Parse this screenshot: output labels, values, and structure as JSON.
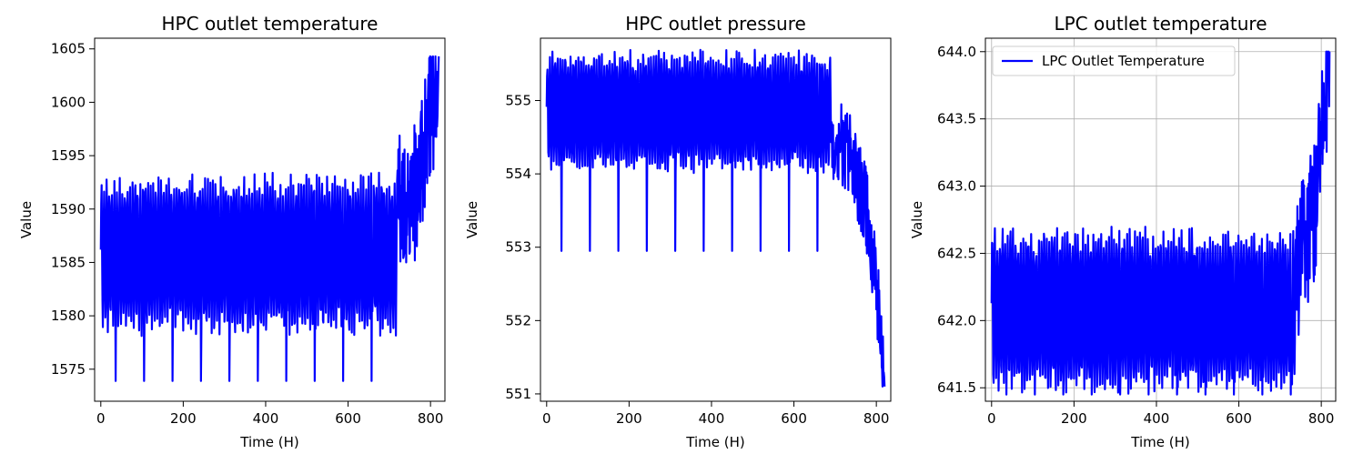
{
  "chart_data": [
    {
      "type": "line",
      "title": "HPC outlet temperature",
      "xlabel": "Time (H)",
      "ylabel": "Value",
      "xlim": [
        -15,
        835
      ],
      "ylim": [
        1572,
        1606
      ],
      "xticks": [
        0,
        200,
        400,
        600,
        800
      ],
      "xtick_labels": [
        "0",
        "200",
        "400",
        "600",
        "800"
      ],
      "yticks": [
        1575,
        1580,
        1585,
        1590,
        1595,
        1600,
        1605
      ],
      "ytick_labels": [
        "1575",
        "1580",
        "1585",
        "1590",
        "1595",
        "1600",
        "1605"
      ],
      "grid": false,
      "legend": null,
      "series": [
        {
          "color": "#0000ff",
          "x_range": [
            0,
            820
          ],
          "cycle_length": 69,
          "baseline_low": 1578.0,
          "baseline_high": 1593.4,
          "dip": 1573.9,
          "end_rise": [
            {
              "x": 720,
              "value": 1590
            },
            {
              "x": 760,
              "value": 1591
            },
            {
              "x": 790,
              "value": 1596
            },
            {
              "x": 805,
              "value": 1600
            },
            {
              "x": 820,
              "value": 1604.3
            }
          ]
        }
      ]
    },
    {
      "type": "line",
      "title": "HPC outlet pressure",
      "xlabel": "Time (H)",
      "ylabel": "Value",
      "xlim": [
        -15,
        835
      ],
      "ylim": [
        550.9,
        555.85
      ],
      "xticks": [
        0,
        200,
        400,
        600,
        800
      ],
      "xtick_labels": [
        "0",
        "200",
        "400",
        "600",
        "800"
      ],
      "yticks": [
        551,
        552,
        553,
        554,
        555
      ],
      "ytick_labels": [
        "551",
        "552",
        "553",
        "554",
        "555"
      ],
      "grid": false,
      "legend": null,
      "series": [
        {
          "color": "#0000ff",
          "x_range": [
            0,
            820
          ],
          "cycle_length": 69,
          "baseline_low": 554.0,
          "baseline_high": 555.7,
          "dip": 552.95,
          "end_decline": [
            {
              "x": 690,
              "value": 554.5
            },
            {
              "x": 740,
              "value": 554.2
            },
            {
              "x": 780,
              "value": 553.4
            },
            {
              "x": 800,
              "value": 552.5
            },
            {
              "x": 820,
              "value": 551.1
            }
          ]
        }
      ]
    },
    {
      "type": "line",
      "title": "LPC outlet temperature",
      "xlabel": "Time (H)",
      "ylabel": "Value",
      "xlim": [
        -15,
        835
      ],
      "ylim": [
        641.4,
        644.1
      ],
      "xticks": [
        0,
        200,
        400,
        600,
        800
      ],
      "xtick_labels": [
        "0",
        "200",
        "400",
        "600",
        "800"
      ],
      "yticks": [
        641.5,
        642.0,
        642.5,
        643.0,
        643.5,
        644.0
      ],
      "ytick_labels": [
        "641.5",
        "642.0",
        "642.5",
        "643.0",
        "643.5",
        "644.0"
      ],
      "grid": true,
      "legend": "top-left",
      "series": [
        {
          "name": "LPC Outlet Temperature",
          "color": "#0000ff",
          "x_range": [
            0,
            820
          ],
          "cycle_length": 69,
          "baseline_low": 641.45,
          "baseline_high": 642.7,
          "dip": 641.45,
          "end_rise": [
            {
              "x": 740,
              "value": 642.4
            },
            {
              "x": 770,
              "value": 642.6
            },
            {
              "x": 790,
              "value": 643.0
            },
            {
              "x": 805,
              "value": 643.5
            },
            {
              "x": 820,
              "value": 644.0
            }
          ]
        }
      ]
    }
  ]
}
